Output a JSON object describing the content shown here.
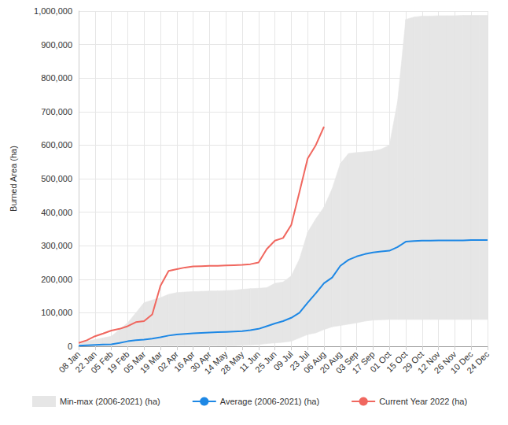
{
  "chart_data": {
    "type": "line",
    "y_label": "Burned Area (ha)",
    "categories": [
      "08 Jan",
      null,
      "22 Jan",
      null,
      "05 Feb",
      null,
      "19 Feb",
      null,
      "05 Mar",
      null,
      "19 Mar",
      null,
      "02 Apr",
      null,
      "16 Apr",
      null,
      "30 Apr",
      null,
      "14 May",
      null,
      "28 May",
      null,
      "11 Jun",
      null,
      "25 Jun",
      null,
      "09 Jul",
      null,
      "23 Jul",
      null,
      "06 Aug",
      null,
      "20 Aug",
      null,
      "03 Sep",
      null,
      "17 Sep",
      null,
      "01 Oct",
      null,
      "15 Oct",
      null,
      "29 Oct",
      null,
      "12 Nov",
      null,
      "26 Nov",
      null,
      "10 Dec",
      null,
      "24 Dec"
    ],
    "series": [
      {
        "name": "Min-max (2006-2021) (ha)",
        "type": "area",
        "color": "#e6e6e6",
        "min": [
          0,
          0,
          1000,
          1000,
          1000,
          1000,
          2000,
          2000,
          2000,
          2000,
          2000,
          2000,
          2000,
          2000,
          2000,
          2000,
          2000,
          2000,
          2000,
          2000,
          3000,
          4000,
          5000,
          8000,
          10000,
          12000,
          15000,
          25000,
          35000,
          40000,
          50000,
          58000,
          62000,
          66000,
          70000,
          75000,
          78000,
          79000,
          80000,
          80000,
          80000,
          80000,
          80000,
          80000,
          80000,
          80000,
          80000,
          80000,
          80000,
          80000,
          80000
        ],
        "max": [
          5000,
          15000,
          20000,
          25000,
          30000,
          50000,
          70000,
          100000,
          130000,
          138000,
          145000,
          155000,
          160000,
          162000,
          163000,
          164000,
          165000,
          165000,
          166000,
          167000,
          170000,
          172000,
          173000,
          175000,
          188000,
          192000,
          210000,
          260000,
          340000,
          380000,
          415000,
          470000,
          545000,
          575000,
          578000,
          580000,
          582000,
          588000,
          600000,
          730000,
          975000,
          982000,
          985000,
          985000,
          986000,
          986000,
          986000,
          987000,
          987000,
          987000,
          987000
        ]
      },
      {
        "name": "Average (2006-2021) (ha)",
        "type": "line",
        "color": "#1e88e5",
        "values": [
          2000,
          3000,
          4000,
          5000,
          6000,
          10000,
          15000,
          18000,
          20000,
          23000,
          27000,
          32000,
          35000,
          37000,
          39000,
          40000,
          41000,
          42000,
          43000,
          44000,
          45000,
          48000,
          52000,
          60000,
          68000,
          75000,
          85000,
          100000,
          130000,
          158000,
          188000,
          205000,
          240000,
          258000,
          268000,
          275000,
          280000,
          283000,
          285000,
          296000,
          312000,
          314000,
          315000,
          315000,
          316000,
          316000,
          316000,
          316000,
          317000,
          317000,
          317000
        ]
      },
      {
        "name": "Current Year 2022 (ha)",
        "type": "line",
        "color": "#f0675f",
        "values": [
          10000,
          18000,
          30000,
          38000,
          47000,
          52000,
          60000,
          72000,
          75000,
          95000,
          180000,
          225000,
          230000,
          235000,
          238000,
          239000,
          240000,
          240000,
          241000,
          242000,
          243000,
          245000,
          250000,
          290000,
          315000,
          323000,
          362000,
          460000,
          560000,
          600000,
          655000,
          null,
          null,
          null,
          null,
          null,
          null,
          null,
          null,
          null,
          null,
          null,
          null,
          null,
          null,
          null,
          null,
          null,
          null,
          null,
          null
        ]
      }
    ],
    "ylim": [
      0,
      1000000
    ],
    "yticks": [
      0,
      {
        "value": 100000,
        "label": "100,000"
      },
      {
        "value": 200000,
        "label": "200,000"
      },
      {
        "value": 300000,
        "label": "300,000"
      },
      {
        "value": 400000,
        "label": "400,000"
      },
      {
        "value": 500000,
        "label": "500,000"
      },
      {
        "value": 600000,
        "label": "600,000"
      },
      {
        "value": 700000,
        "label": "700,000"
      },
      {
        "value": 800000,
        "label": "800,000"
      },
      {
        "value": 900000,
        "label": "900,000"
      },
      {
        "value": 1000000,
        "label": "1,000,000"
      }
    ],
    "grid": true,
    "legend": "bottom"
  }
}
